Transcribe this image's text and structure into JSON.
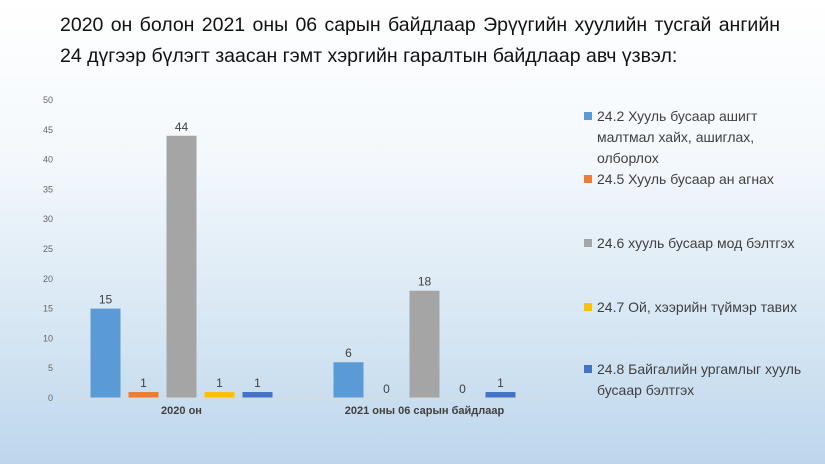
{
  "chart_data": {
    "type": "bar",
    "title": "2020 он болон 2021 оны 06 сарын байдлаар Эрүүгийн хуулийн тусгай ангийн 24 дүгээр бүлэгт заасан гэмт хэргийн гаралтын байдлаар авч үзвэл:",
    "categories": [
      "2020 он",
      "2021 оны 06 сарын байдлаар"
    ],
    "series": [
      {
        "name": "24.2 Хууль бусаар ашигт малтмал хайх, ашиглах, олборлох",
        "values": [
          15,
          6
        ],
        "labels": [
          "15",
          "6"
        ],
        "color": "#5b9bd5"
      },
      {
        "name": "24.5 Хууль бусаар ан агнах",
        "values": [
          1,
          0
        ],
        "labels": [
          "1",
          "0"
        ],
        "color": "#ed7d31"
      },
      {
        "name": " 24.6 хууль бусаар мод бэлтгэх",
        "values": [
          44,
          18
        ],
        "labels": [
          "44",
          "18"
        ],
        "color": "#a5a5a5"
      },
      {
        "name": "24.7 Ой, хээрийн түймэр тавих",
        "values": [
          1,
          0
        ],
        "labels": [
          "1",
          "0"
        ],
        "color": "#ffc000"
      },
      {
        "name": "24.8 Байгалийн ургамлыг хууль бусаар бэлтгэх",
        "values": [
          1,
          1
        ],
        "labels": [
          "1",
          "1"
        ],
        "color": "#4472c4"
      }
    ],
    "ylim": [
      0,
      50
    ],
    "yticks": [
      0,
      5,
      10,
      15,
      20,
      25,
      30,
      35,
      40,
      45,
      50
    ],
    "ytick_labels": [
      "0",
      "5",
      "10",
      "15",
      "20",
      "25",
      "30",
      "35",
      "40",
      "45",
      "50"
    ],
    "grid": false,
    "legend": "right"
  }
}
